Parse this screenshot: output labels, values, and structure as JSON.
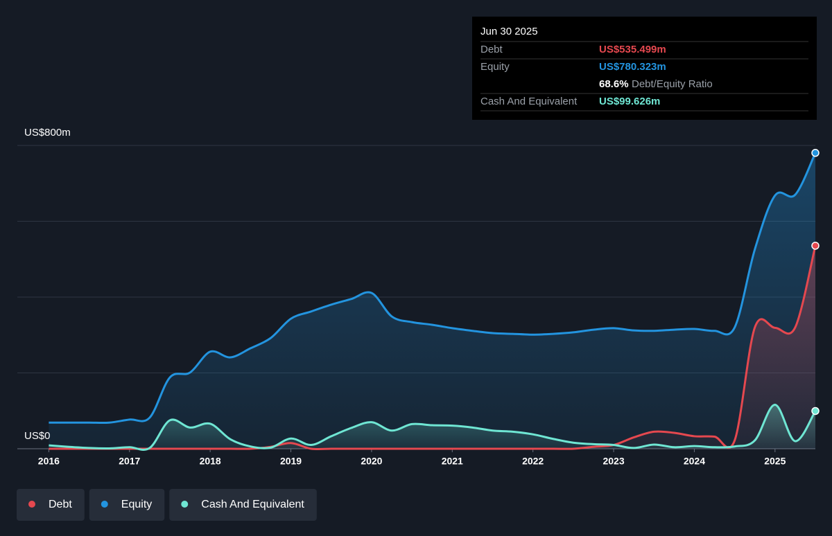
{
  "chart_data": {
    "type": "line",
    "x": [
      2016,
      2016.25,
      2016.5,
      2016.75,
      2017,
      2017.25,
      2017.5,
      2017.75,
      2018,
      2018.25,
      2018.5,
      2018.75,
      2019,
      2019.25,
      2019.5,
      2019.75,
      2020,
      2020.25,
      2020.5,
      2020.75,
      2021,
      2021.25,
      2021.5,
      2021.75,
      2022,
      2022.25,
      2022.5,
      2022.75,
      2023,
      2023.25,
      2023.5,
      2023.75,
      2024,
      2024.25,
      2024.5,
      2024.75,
      2025,
      2025.25,
      2025.5
    ],
    "series": [
      {
        "name": "Debt",
        "color": "#e5484f",
        "values": [
          0,
          0,
          0,
          0,
          0,
          0,
          0,
          0,
          0,
          0,
          0,
          5,
          15,
          0,
          0,
          0,
          0,
          0,
          0,
          0,
          0,
          0,
          0,
          0,
          0,
          0,
          0,
          5,
          10,
          30,
          45,
          42,
          33,
          32,
          22,
          320,
          319,
          320,
          535.499
        ]
      },
      {
        "name": "Equity",
        "color": "#2394df",
        "values": [
          69,
          69,
          69,
          69,
          77,
          82,
          188,
          201,
          256,
          241,
          265,
          292,
          343,
          362,
          380,
          395,
          411,
          349,
          334,
          327,
          318,
          311,
          305,
          303,
          301,
          303,
          307,
          314,
          318,
          312,
          311,
          314,
          316,
          311,
          320,
          526,
          668,
          670,
          780.323
        ]
      },
      {
        "name": "Cash And Equivalent",
        "color": "#6fe6d3",
        "values": [
          9,
          5,
          2,
          1,
          4,
          2,
          75,
          56,
          66,
          25,
          6,
          3,
          27,
          10,
          33,
          55,
          70,
          48,
          65,
          62,
          61,
          56,
          48,
          45,
          38,
          26,
          16,
          12,
          10,
          2,
          11,
          4,
          7,
          4,
          6,
          22,
          116,
          20,
          99.626
        ]
      }
    ],
    "xlim": [
      2015.61,
      2025.5
    ],
    "xticks": [
      2016,
      2017,
      2018,
      2019,
      2020,
      2021,
      2022,
      2023,
      2024,
      2025
    ],
    "ylim": [
      0,
      800
    ],
    "yticks": [
      {
        "value": 0,
        "label": "US$0"
      },
      {
        "value": 200,
        "label": null
      },
      {
        "value": 400,
        "label": null
      },
      {
        "value": 600,
        "label": null
      },
      {
        "value": 800,
        "label": "US$800m"
      }
    ],
    "grid": true,
    "tooltip": {
      "date": "Jun 30 2025",
      "rows": [
        {
          "label": "Debt",
          "value": "US$535.499m"
        },
        {
          "label": "Equity",
          "value": "US$780.323m"
        },
        {
          "label": null,
          "value": "68.6%",
          "note": "Debt/Equity Ratio"
        },
        {
          "label": "Cash And Equivalent",
          "value": "US$99.626m"
        }
      ]
    }
  }
}
